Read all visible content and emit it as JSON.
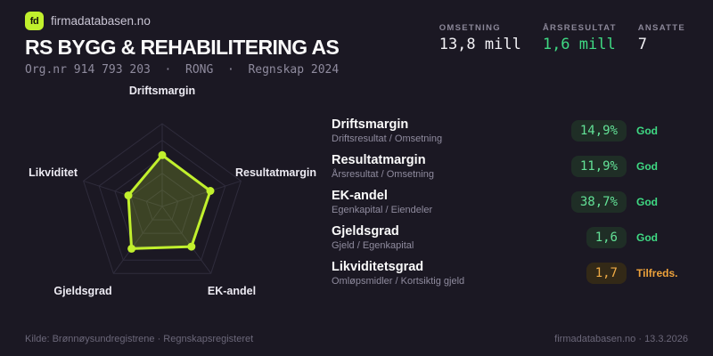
{
  "header": {
    "logo_text": "fd",
    "brand": "firmadatabasen.no",
    "company_name": "RS BYGG & REHABILITERING AS",
    "org_line": "Org.nr 914 793 203  ·  RONG  ·  Regnskap 2024",
    "stats": [
      {
        "label": "OMSETNING",
        "value": "13,8 mill",
        "color": "white"
      },
      {
        "label": "ÅRSRESULTAT",
        "value": "1,6 mill",
        "color": "green"
      },
      {
        "label": "ANSATTE",
        "value": "7",
        "color": "white"
      }
    ]
  },
  "chart_data": {
    "type": "radar",
    "axes": [
      "Driftsmargin",
      "Resultatmargin",
      "EK-andel",
      "Gjeldsgrad",
      "Likviditet"
    ],
    "values": [
      0.62,
      0.61,
      0.6,
      0.63,
      0.43
    ],
    "scale": [
      0,
      1
    ],
    "rings": 5,
    "legend": false,
    "line_color": "#c1f02d",
    "fill_color": "rgba(193,240,45,0.20)",
    "grid_color": "#2f2c3c",
    "point_radius": 4.5
  },
  "metrics": {
    "rows": [
      {
        "title": "Driftsmargin",
        "formula": "Driftsresultat / Omsetning",
        "value": "14,9%",
        "rating": "God",
        "status": "good"
      },
      {
        "title": "Resultatmargin",
        "formula": "Årsresultat / Omsetning",
        "value": "11,9%",
        "rating": "God",
        "status": "good"
      },
      {
        "title": "EK-andel",
        "formula": "Egenkapital / Eiendeler",
        "value": "38,7%",
        "rating": "God",
        "status": "good"
      },
      {
        "title": "Gjeldsgrad",
        "formula": "Gjeld / Egenkapital",
        "value": "1,6",
        "rating": "God",
        "status": "good"
      },
      {
        "title": "Likviditetsgrad",
        "formula": "Omløpsmidler / Kortsiktig gjeld",
        "value": "1,7",
        "rating": "Tilfreds.",
        "status": "ok"
      }
    ]
  },
  "footer": {
    "source": "Kilde: Brønnøysundregistrene · Regnskapsregisteret",
    "brand_date": "firmadatabasen.no · 13.3.2026"
  },
  "colors": {
    "background": "#1b1823",
    "accent_lime": "#c1f02d",
    "status_good": "#3fd983",
    "status_ok": "#eda23b"
  }
}
